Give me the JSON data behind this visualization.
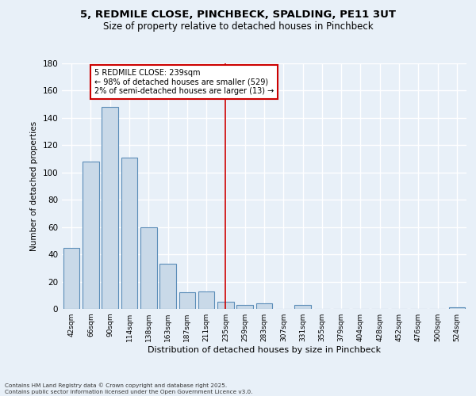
{
  "title": "5, REDMILE CLOSE, PINCHBECK, SPALDING, PE11 3UT",
  "subtitle": "Size of property relative to detached houses in Pinchbeck",
  "xlabel": "Distribution of detached houses by size in Pinchbeck",
  "ylabel": "Number of detached properties",
  "categories": [
    "42sqm",
    "66sqm",
    "90sqm",
    "114sqm",
    "138sqm",
    "163sqm",
    "187sqm",
    "211sqm",
    "235sqm",
    "259sqm",
    "283sqm",
    "307sqm",
    "331sqm",
    "355sqm",
    "379sqm",
    "404sqm",
    "428sqm",
    "452sqm",
    "476sqm",
    "500sqm",
    "524sqm"
  ],
  "values": [
    45,
    108,
    148,
    111,
    60,
    33,
    12,
    13,
    5,
    3,
    4,
    0,
    3,
    0,
    0,
    0,
    0,
    0,
    0,
    0,
    1
  ],
  "bar_color": "#c9d9e8",
  "bar_edge_color": "#5b8db8",
  "highlight_line_index": 8,
  "annotation_title": "5 REDMILE CLOSE: 239sqm",
  "annotation_line1": "← 98% of detached houses are smaller (529)",
  "annotation_line2": "2% of semi-detached houses are larger (13) →",
  "annotation_box_color": "#cc0000",
  "ylim": [
    0,
    180
  ],
  "yticks": [
    0,
    20,
    40,
    60,
    80,
    100,
    120,
    140,
    160,
    180
  ],
  "background_color": "#e8f0f8",
  "grid_color": "#ffffff",
  "footer_line1": "Contains HM Land Registry data © Crown copyright and database right 2025.",
  "footer_line2": "Contains public sector information licensed under the Open Government Licence v3.0."
}
